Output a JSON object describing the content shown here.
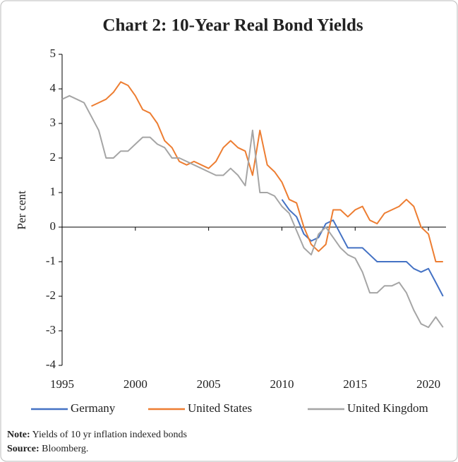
{
  "chart_data": {
    "type": "line",
    "title": "Chart 2: 10-Year Real Bond Yields",
    "y_label": "Per cent",
    "note_label": "Note:",
    "note": "Yields of 10 yr inflation indexed bonds",
    "source_label": "Source:",
    "source": "Bloomberg.",
    "x": [
      1995,
      1995.5,
      1996,
      1996.5,
      1997,
      1997.5,
      1998,
      1998.5,
      1999,
      1999.5,
      2000,
      2000.5,
      2001,
      2001.5,
      2002,
      2002.5,
      2003,
      2003.5,
      2004,
      2004.5,
      2005,
      2005.5,
      2006,
      2006.5,
      2007,
      2007.5,
      2008,
      2008.5,
      2009,
      2009.5,
      2010,
      2010.5,
      2011,
      2011.5,
      2012,
      2012.5,
      2013,
      2013.5,
      2014,
      2014.5,
      2015,
      2015.5,
      2016,
      2016.5,
      2017,
      2017.5,
      2018,
      2018.5,
      2019,
      2019.5,
      2020,
      2020.5,
      2021
    ],
    "series": [
      {
        "name": "Germany",
        "color": "#4472c4",
        "values": [
          null,
          null,
          null,
          null,
          null,
          null,
          null,
          null,
          null,
          null,
          null,
          null,
          null,
          null,
          null,
          null,
          null,
          null,
          null,
          null,
          null,
          null,
          null,
          null,
          null,
          null,
          null,
          null,
          null,
          null,
          0.8,
          0.5,
          0.3,
          -0.2,
          -0.4,
          -0.3,
          0.1,
          0.2,
          -0.2,
          -0.6,
          -0.6,
          -0.6,
          -0.8,
          -1.0,
          -1.0,
          -1.0,
          -1.0,
          -1.0,
          -1.2,
          -1.3,
          -1.2,
          -1.6,
          -2.0
        ]
      },
      {
        "name": "United States",
        "color": "#ed7d31",
        "values": [
          null,
          null,
          null,
          null,
          3.5,
          3.6,
          3.7,
          3.9,
          4.2,
          4.1,
          3.8,
          3.4,
          3.3,
          3.0,
          2.5,
          2.3,
          1.9,
          1.8,
          1.9,
          1.8,
          1.7,
          1.9,
          2.3,
          2.5,
          2.3,
          2.2,
          1.5,
          2.8,
          1.8,
          1.6,
          1.3,
          0.8,
          0.7,
          0.0,
          -0.5,
          -0.7,
          -0.5,
          0.5,
          0.5,
          0.3,
          0.5,
          0.6,
          0.2,
          0.1,
          0.4,
          0.5,
          0.6,
          0.8,
          0.6,
          0.0,
          -0.2,
          -1.0,
          -1.0
        ]
      },
      {
        "name": "United Kingdom",
        "color": "#a5a5a5",
        "values": [
          3.7,
          3.8,
          3.7,
          3.6,
          3.2,
          2.8,
          2.0,
          2.0,
          2.2,
          2.2,
          2.4,
          2.6,
          2.6,
          2.4,
          2.3,
          2.0,
          2.0,
          1.9,
          1.8,
          1.7,
          1.6,
          1.5,
          1.5,
          1.7,
          1.5,
          1.2,
          2.8,
          1.0,
          1.0,
          0.9,
          0.6,
          0.4,
          -0.1,
          -0.6,
          -0.8,
          -0.2,
          0.0,
          -0.3,
          -0.6,
          -0.8,
          -0.9,
          -1.3,
          -1.9,
          -1.9,
          -1.7,
          -1.7,
          -1.6,
          -1.9,
          -2.4,
          -2.8,
          -2.9,
          -2.6,
          -2.9
        ]
      }
    ],
    "xlim": [
      1995,
      2021.2
    ],
    "xticks": [
      1995,
      2000,
      2005,
      2010,
      2015,
      2020
    ],
    "ylim": [
      -4,
      5
    ],
    "yticks": [
      -4,
      -3,
      -2,
      -1,
      0,
      1,
      2,
      3,
      4,
      5
    ],
    "legend": "bottom"
  }
}
